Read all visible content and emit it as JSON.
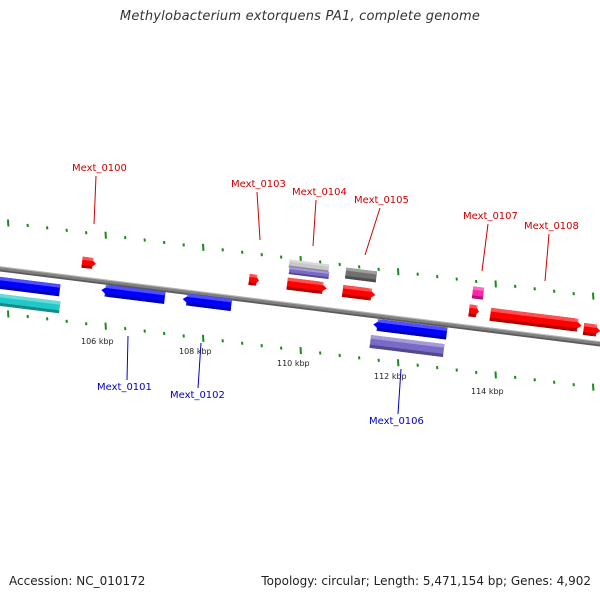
{
  "title": "Methylobacterium extorquens PA1, complete genome",
  "footer": {
    "accession": "Accession: NC_010172",
    "summary": "Topology: circular; Length: 5,471,154 bp; Genes: 4,902"
  },
  "colors": {
    "background": "#ffffff",
    "backbone": "#808080",
    "tick_marks": "#1a8a1a",
    "forward_gene": "#ff0000",
    "reverse_gene": "#0000ff",
    "label_forward": "#cc0000",
    "label_reverse": "#0000cc",
    "cds_cyan": "#22c8c8",
    "cds_purple": "#7a6ac8",
    "cds_gray": "#707070",
    "cds_lightgray": "#c8c8cc",
    "cds_magenta": "#ff22aa"
  },
  "axis_labels": [
    "106 kbp",
    "108 kbp",
    "110 kbp",
    "112 kbp",
    "114 kbp"
  ],
  "gene_labels": {
    "forward": [
      "Mext_0100",
      "Mext_0103",
      "Mext_0104",
      "Mext_0105",
      "Mext_0107",
      "Mext_0108"
    ],
    "reverse": [
      "Mext_0101",
      "Mext_0102",
      "Mext_0106"
    ]
  }
}
